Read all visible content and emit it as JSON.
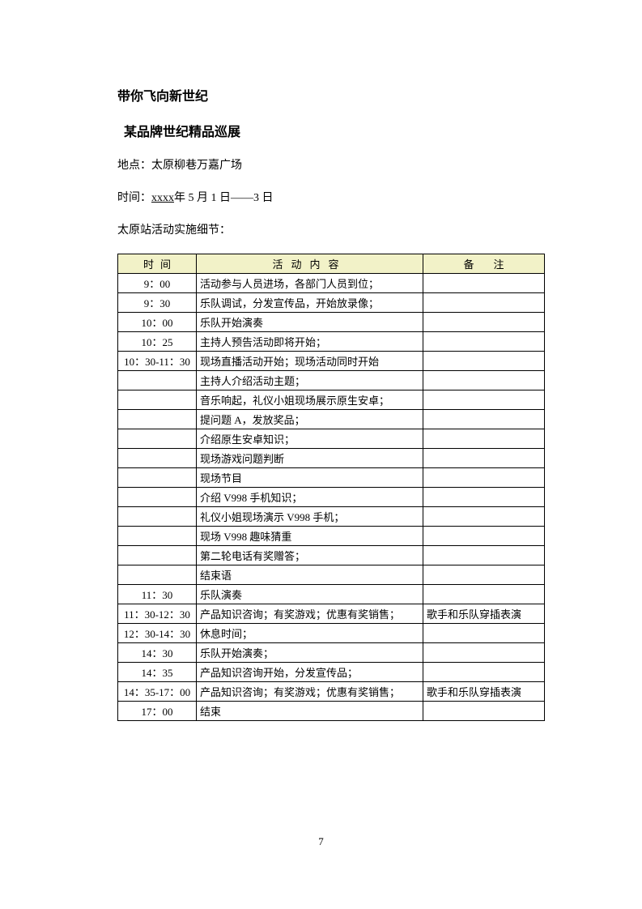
{
  "headings": {
    "h1": "带你飞向新世纪",
    "h2": "某品牌世纪精品巡展"
  },
  "info": {
    "location_label": "地点：",
    "location_value": "太原柳巷万嘉广场",
    "time_label": "时间：",
    "time_underline": "xxxx",
    "time_rest": "年 5 月 1 日——3 日",
    "detail_label": "太原站活动实施细节："
  },
  "table": {
    "header_bg": "#f2f2c8",
    "border_color": "#000000",
    "headers": {
      "time": "时间",
      "content": "活动内容",
      "remark": "备注"
    },
    "rows": [
      {
        "time": "9：00",
        "content": "活动参与人员进场，各部门人员到位；",
        "remark": ""
      },
      {
        "time": "9：30",
        "content": "乐队调试，分发宣传品，开始放录像；",
        "remark": ""
      },
      {
        "time": "10：00",
        "content": "乐队开始演奏",
        "remark": ""
      },
      {
        "time": "10：25",
        "content": "主持人预告活动即将开始；",
        "remark": ""
      },
      {
        "time": "10：30-11：30",
        "content": "现场直播活动开始；现场活动同时开始",
        "remark": ""
      },
      {
        "time": "",
        "content": "主持人介绍活动主题；",
        "remark": ""
      },
      {
        "time": "",
        "content": "音乐响起，礼仪小姐现场展示原生安卓；",
        "remark": ""
      },
      {
        "time": "",
        "content": "提问题 A，发放奖品；",
        "remark": ""
      },
      {
        "time": "",
        "content": "介绍原生安卓知识；",
        "remark": ""
      },
      {
        "time": "",
        "content": "现场游戏问题判断",
        "remark": ""
      },
      {
        "time": "",
        "content": "现场节目",
        "remark": ""
      },
      {
        "time": "",
        "content": "介绍 V998 手机知识；",
        "remark": ""
      },
      {
        "time": "",
        "content": "礼仪小姐现场演示 V998 手机；",
        "remark": ""
      },
      {
        "time": "",
        "content": "现场 V998 趣味猜重",
        "remark": ""
      },
      {
        "time": "",
        "content": "第二轮电话有奖赠答；",
        "remark": ""
      },
      {
        "time": "",
        "content": "结束语",
        "remark": ""
      },
      {
        "time": "11：30",
        "content": "乐队演奏",
        "remark": ""
      },
      {
        "time": "11：30-12：30",
        "content": "产品知识咨询；有奖游戏；优惠有奖销售；",
        "remark": "歌手和乐队穿插表演"
      },
      {
        "time": "12：30-14：30",
        "content": "休息时间；",
        "remark": ""
      },
      {
        "time": "14：30",
        "content": "乐队开始演奏；",
        "remark": ""
      },
      {
        "time": "14：35",
        "content": "产品知识咨询开始，分发宣传品；",
        "remark": ""
      },
      {
        "time": "14：35-17：00",
        "content": "产品知识咨询；有奖游戏；优惠有奖销售；",
        "remark": "歌手和乐队穿插表演"
      },
      {
        "time": "17：00",
        "content": "结束",
        "remark": ""
      }
    ]
  },
  "page_number": "7"
}
